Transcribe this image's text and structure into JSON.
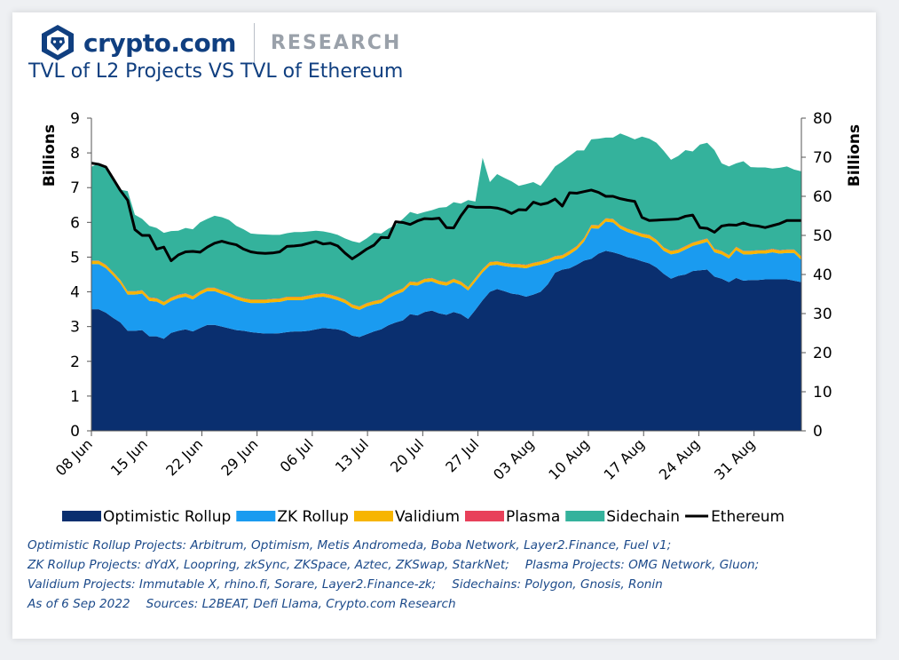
{
  "header": {
    "brand_name": "crypto.com",
    "brand_section": "RESEARCH",
    "logo_icon": "crypto-com-lion-logo-icon"
  },
  "chart_data": {
    "type": "area",
    "title": "TVL of L2 Projects VS TVL of Ethereum",
    "ylabel": "Billions",
    "y2label": "Billions",
    "ylim": [
      0,
      9
    ],
    "y2lim": [
      0,
      80
    ],
    "yticks": [
      "0",
      "1",
      "2",
      "3",
      "4",
      "5",
      "6",
      "7",
      "8",
      "9"
    ],
    "y2ticks": [
      "0",
      "10",
      "20",
      "30",
      "40",
      "50",
      "60",
      "70",
      "80"
    ],
    "stacked": true,
    "x_start": "2022-06-08",
    "x_end": "2022-09-06",
    "xticks": [
      "08 Jun",
      "15 Jun",
      "22 Jun",
      "29 Jun",
      "06 Jul",
      "13 Jul",
      "20 Jul",
      "27 Jul",
      "03 Aug",
      "10 Aug",
      "17 Aug",
      "24 Aug",
      "31 Aug"
    ],
    "legend_position": "bottom",
    "series": [
      {
        "name": "Optimistic Rollup",
        "color": "#0a2f6f",
        "axis": "left",
        "values": [
          3.5,
          3.5,
          3.4,
          3.25,
          3.12,
          2.88,
          2.88,
          2.9,
          2.72,
          2.72,
          2.65,
          2.82,
          2.88,
          2.92,
          2.86,
          2.96,
          3.05,
          3.05,
          3.0,
          2.95,
          2.9,
          2.88,
          2.84,
          2.82,
          2.8,
          2.8,
          2.81,
          2.84,
          2.86,
          2.86,
          2.88,
          2.92,
          2.96,
          2.94,
          2.92,
          2.86,
          2.74,
          2.7,
          2.78,
          2.86,
          2.92,
          3.04,
          3.12,
          3.18,
          3.36,
          3.32,
          3.42,
          3.46,
          3.38,
          3.34,
          3.42,
          3.36,
          3.22,
          3.48,
          3.76,
          4.0,
          4.08,
          4.02,
          3.95,
          3.92,
          3.86,
          3.92,
          4.0,
          4.22,
          4.55,
          4.64,
          4.68,
          4.78,
          4.9,
          4.95,
          5.1,
          5.18,
          5.14,
          5.08,
          5.0,
          4.95,
          4.88,
          4.82,
          4.7,
          4.52,
          4.38,
          4.46,
          4.5,
          4.6,
          4.62,
          4.64,
          4.44,
          4.38,
          4.28,
          4.4,
          4.32,
          4.34,
          4.34,
          4.36,
          4.36,
          4.36,
          4.36,
          4.32,
          4.28
        ]
      },
      {
        "name": "ZK Rollup",
        "color": "#1a9bf0",
        "axis": "left",
        "values": [
          1.3,
          1.3,
          1.28,
          1.22,
          1.12,
          1.04,
          1.04,
          1.05,
          1.02,
          1.0,
          0.96,
          0.92,
          0.94,
          0.94,
          0.92,
          0.96,
          0.97,
          0.97,
          0.94,
          0.92,
          0.88,
          0.84,
          0.84,
          0.86,
          0.88,
          0.9,
          0.9,
          0.92,
          0.9,
          0.9,
          0.92,
          0.92,
          0.9,
          0.88,
          0.84,
          0.82,
          0.8,
          0.78,
          0.8,
          0.78,
          0.76,
          0.78,
          0.8,
          0.82,
          0.84,
          0.86,
          0.86,
          0.84,
          0.84,
          0.84,
          0.86,
          0.84,
          0.82,
          0.82,
          0.8,
          0.76,
          0.7,
          0.72,
          0.76,
          0.78,
          0.82,
          0.82,
          0.78,
          0.62,
          0.38,
          0.32,
          0.4,
          0.44,
          0.55,
          0.88,
          0.72,
          0.84,
          0.86,
          0.74,
          0.72,
          0.7,
          0.7,
          0.72,
          0.7,
          0.66,
          0.7,
          0.66,
          0.72,
          0.72,
          0.76,
          0.8,
          0.7,
          0.7,
          0.68,
          0.8,
          0.76,
          0.74,
          0.76,
          0.74,
          0.78,
          0.74,
          0.76,
          0.8,
          0.64
        ]
      },
      {
        "name": "Validium",
        "color": "#f7b500",
        "axis": "left",
        "values": [
          0.09,
          0.09,
          0.09,
          0.09,
          0.09,
          0.09,
          0.09,
          0.09,
          0.09,
          0.09,
          0.09,
          0.09,
          0.09,
          0.09,
          0.09,
          0.09,
          0.09,
          0.09,
          0.09,
          0.09,
          0.09,
          0.09,
          0.09,
          0.09,
          0.09,
          0.09,
          0.09,
          0.09,
          0.09,
          0.09,
          0.09,
          0.09,
          0.09,
          0.09,
          0.09,
          0.09,
          0.09,
          0.09,
          0.09,
          0.09,
          0.09,
          0.09,
          0.09,
          0.09,
          0.09,
          0.09,
          0.09,
          0.09,
          0.09,
          0.09,
          0.09,
          0.09,
          0.09,
          0.09,
          0.09,
          0.09,
          0.09,
          0.09,
          0.09,
          0.09,
          0.09,
          0.09,
          0.09,
          0.09,
          0.09,
          0.09,
          0.09,
          0.09,
          0.09,
          0.09,
          0.09,
          0.09,
          0.09,
          0.09,
          0.09,
          0.09,
          0.09,
          0.09,
          0.09,
          0.09,
          0.09,
          0.09,
          0.09,
          0.09,
          0.09,
          0.09,
          0.09,
          0.09,
          0.09,
          0.09,
          0.09,
          0.09,
          0.09,
          0.09,
          0.09,
          0.09,
          0.09,
          0.09,
          0.09
        ]
      },
      {
        "name": "Plasma",
        "color": "#e8405a",
        "axis": "left",
        "values": [
          0.01,
          0.01,
          0.01,
          0.01,
          0.01,
          0.01,
          0.01,
          0.01,
          0.01,
          0.01,
          0.01,
          0.01,
          0.01,
          0.01,
          0.01,
          0.01,
          0.01,
          0.01,
          0.01,
          0.01,
          0.01,
          0.01,
          0.01,
          0.01,
          0.01,
          0.01,
          0.01,
          0.01,
          0.01,
          0.01,
          0.01,
          0.01,
          0.01,
          0.01,
          0.01,
          0.01,
          0.01,
          0.01,
          0.01,
          0.01,
          0.01,
          0.01,
          0.01,
          0.01,
          0.01,
          0.01,
          0.01,
          0.01,
          0.01,
          0.01,
          0.01,
          0.01,
          0.01,
          0.01,
          0.01,
          0.01,
          0.01,
          0.01,
          0.01,
          0.01,
          0.01,
          0.01,
          0.01,
          0.01,
          0.01,
          0.01,
          0.01,
          0.01,
          0.01,
          0.01,
          0.01,
          0.01,
          0.01,
          0.01,
          0.01,
          0.01,
          0.01,
          0.01,
          0.01,
          0.01,
          0.01,
          0.01,
          0.01,
          0.01,
          0.01,
          0.01,
          0.01,
          0.01,
          0.01,
          0.01,
          0.01,
          0.01,
          0.01,
          0.01,
          0.01,
          0.01,
          0.01,
          0.01,
          0.01
        ]
      },
      {
        "name": "Sidechain",
        "color": "#34b29c",
        "axis": "left",
        "values": [
          2.7,
          2.8,
          2.82,
          2.74,
          2.6,
          2.88,
          2.2,
          2.05,
          2.06,
          2.02,
          1.99,
          1.91,
          1.84,
          1.88,
          1.92,
          1.98,
          1.98,
          2.07,
          2.11,
          2.1,
          2.02,
          1.98,
          1.9,
          1.88,
          1.87,
          1.84,
          1.83,
          1.83,
          1.86,
          1.86,
          1.84,
          1.82,
          1.78,
          1.78,
          1.78,
          1.76,
          1.82,
          1.83,
          1.86,
          1.96,
          1.9,
          1.9,
          1.91,
          2.0,
          2.0,
          1.96,
          1.92,
          1.95,
          2.1,
          2.16,
          2.2,
          2.24,
          2.5,
          2.2,
          3.2,
          2.3,
          2.51,
          2.44,
          2.37,
          2.25,
          2.32,
          2.32,
          2.17,
          2.38,
          2.58,
          2.69,
          2.73,
          2.75,
          2.52,
          2.46,
          2.49,
          2.32,
          2.34,
          2.64,
          2.66,
          2.64,
          2.79,
          2.77,
          2.79,
          2.78,
          2.62,
          2.69,
          2.76,
          2.62,
          2.76,
          2.75,
          2.84,
          2.52,
          2.55,
          2.4,
          2.58,
          2.41,
          2.38,
          2.38,
          2.31,
          2.37,
          2.39,
          2.3,
          2.45
        ]
      },
      {
        "name": "Ethereum",
        "color": "#000000",
        "axis": "right",
        "kind": "line",
        "values": [
          68.5,
          68.2,
          67.5,
          64.5,
          61.5,
          59.0,
          51.5,
          50.0,
          50.0,
          46.5,
          47.0,
          43.5,
          45.0,
          45.8,
          45.9,
          45.7,
          47.0,
          48.0,
          48.5,
          48.0,
          47.6,
          46.5,
          45.8,
          45.5,
          45.4,
          45.5,
          45.8,
          47.2,
          47.3,
          47.5,
          48.0,
          48.5,
          47.8,
          48.0,
          47.3,
          45.5,
          44.0,
          45.2,
          46.5,
          47.5,
          49.5,
          49.4,
          53.5,
          53.3,
          52.8,
          53.7,
          54.3,
          54.2,
          54.4,
          52.0,
          51.9,
          55.0,
          57.5,
          57.2,
          57.2,
          57.2,
          57.0,
          56.5,
          55.6,
          56.6,
          56.5,
          58.5,
          57.9,
          58.3,
          59.3,
          57.5,
          60.9,
          60.8,
          61.2,
          61.6,
          61.0,
          60.0,
          60.0,
          59.4,
          59.0,
          58.7,
          54.6,
          53.8,
          53.9,
          54.0,
          54.1,
          54.2,
          54.9,
          55.2,
          52.0,
          51.8,
          50.8,
          52.4,
          52.7,
          52.6,
          53.2,
          52.6,
          52.4,
          52.0,
          52.5,
          53.0,
          53.8,
          53.8,
          53.8
        ]
      }
    ]
  },
  "notes": {
    "line1": "Optimistic Rollup Projects: Arbitrum, Optimism, Metis Andromeda, Boba Network, Layer2.Finance, Fuel v1;",
    "line2a": "ZK Rollup Projects: dYdX, Loopring, zkSync, ZKSpace, Aztec, ZKSwap, StarkNet;",
    "line2b": "Plasma Projects: OMG Network, Gluon;",
    "line3a": "Validium Projects: Immutable X, rhino.fi, Sorare, Layer2.Finance-zk;",
    "line3b": "Sidechains: Polygon, Gnosis, Ronin",
    "line4a": "As of 6 Sep 2022",
    "line4b": "Sources:  L2BEAT, Defi Llama, Crypto.com Research"
  }
}
